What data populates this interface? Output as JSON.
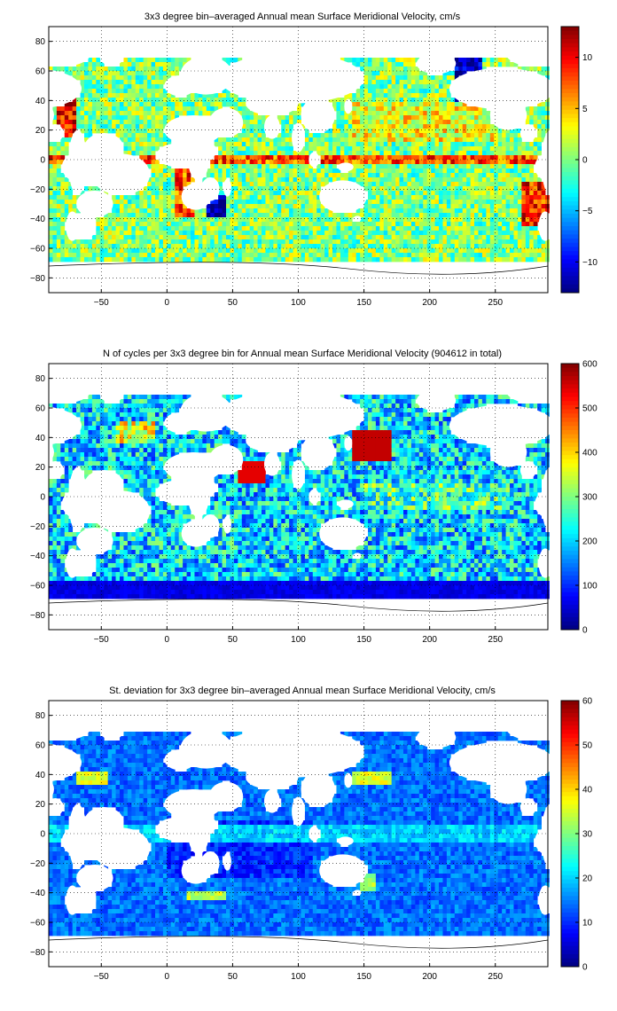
{
  "figure": {
    "panels": [
      {
        "title": "3x3 degree bin–averaged Annual mean Surface Meridional Velocity, cm/s",
        "colorbar_ticks": [
          "10",
          "5",
          "0",
          "−5",
          "−10"
        ]
      },
      {
        "title": "N of cycles per 3x3 degree bin for Annual mean Surface Meridional Velocity (904612 in total)",
        "colorbar_ticks": [
          "600",
          "500",
          "400",
          "300",
          "200",
          "100",
          "0"
        ]
      },
      {
        "title": "St. deviation for 3x3 degree bin–averaged Annual mean Surface Meridional Velocity, cm/s",
        "colorbar_ticks": [
          "60",
          "50",
          "40",
          "30",
          "20",
          "10",
          "0"
        ]
      }
    ],
    "x_ticks": [
      "−50",
      "0",
      "50",
      "100",
      "150",
      "200",
      "250"
    ],
    "y_ticks": [
      "80",
      "60",
      "40",
      "20",
      "0",
      "−20",
      "−40",
      "−60",
      "−80"
    ]
  },
  "chart_data": [
    {
      "type": "heatmap",
      "title": "3x3 degree bin–averaged Annual mean Surface Meridional Velocity, cm/s",
      "quantity": "mean meridional velocity",
      "units": "cm/s",
      "bin_size_deg": 3,
      "xlim": [
        -90,
        290
      ],
      "ylim": [
        -90,
        90
      ],
      "clim": [
        -13,
        13
      ],
      "colormap": "jet",
      "grid": true,
      "colorbar_ticks": [
        10,
        5,
        0,
        -5,
        -10
      ],
      "x_ticks": [
        -50,
        0,
        50,
        100,
        150,
        200,
        250
      ],
      "y_ticks": [
        80,
        60,
        40,
        20,
        0,
        -20,
        -40,
        -60,
        -80
      ]
    },
    {
      "type": "heatmap",
      "title": "N of cycles per 3x3 degree bin for Annual mean Surface Meridional Velocity (904612 in total)",
      "quantity": "number of cycles per bin",
      "total": 904612,
      "bin_size_deg": 3,
      "xlim": [
        -90,
        290
      ],
      "ylim": [
        -90,
        90
      ],
      "clim": [
        0,
        600
      ],
      "colormap": "jet",
      "grid": true,
      "colorbar_ticks": [
        600,
        500,
        400,
        300,
        200,
        100,
        0
      ],
      "x_ticks": [
        -50,
        0,
        50,
        100,
        150,
        200,
        250
      ],
      "y_ticks": [
        80,
        60,
        40,
        20,
        0,
        -20,
        -40,
        -60,
        -80
      ]
    },
    {
      "type": "heatmap",
      "title": "St. deviation for 3x3 degree bin–averaged Annual mean Surface Meridional Velocity, cm/s",
      "quantity": "standard deviation of meridional velocity",
      "units": "cm/s",
      "bin_size_deg": 3,
      "xlim": [
        -90,
        290
      ],
      "ylim": [
        -90,
        90
      ],
      "clim": [
        0,
        60
      ],
      "colormap": "jet",
      "grid": true,
      "colorbar_ticks": [
        60,
        50,
        40,
        30,
        20,
        10,
        0
      ],
      "x_ticks": [
        -50,
        0,
        50,
        100,
        150,
        200,
        250
      ],
      "y_ticks": [
        80,
        60,
        40,
        20,
        0,
        -20,
        -40,
        -60,
        -80
      ]
    }
  ]
}
